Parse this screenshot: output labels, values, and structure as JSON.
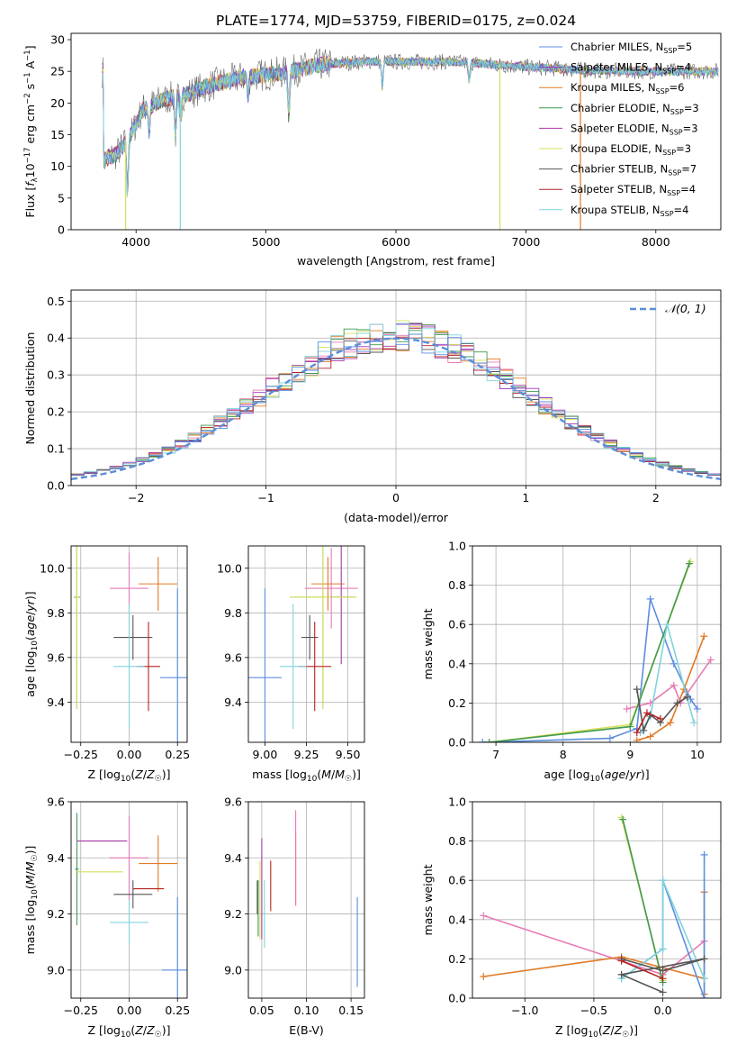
{
  "figure_title": "PLATE=1774, MJD=53759, FIBERID=0175, z=0.024",
  "colors": {
    "chabrier_miles": "#5b8ee0",
    "salpeter_miles": "#9a35c4",
    "kroupa_miles": "#e07a24",
    "chabrier_elodie": "#3f9a4f",
    "salpeter_elodie": "#a63aa6",
    "kroupa_elodie": "#d8e05a",
    "chabrier_stelib": "#555555",
    "salpeter_stelib": "#b52222",
    "kroupa_stelib": "#7fd3dd",
    "pink": "#e77ab3",
    "normal_curve": "#5b8ed8",
    "grid": "#b0b0b0"
  },
  "chart_data": [
    {
      "id": "spectrum",
      "type": "line",
      "title": "",
      "xlabel": "wavelength [Angstrom, rest frame]",
      "ylabel": "Flux [f_λ10^-17 erg cm^-2 s^-1 A^-1]",
      "xlim": [
        3500,
        8500
      ],
      "ylim": [
        0,
        31
      ],
      "xticks": [
        "4000",
        "5000",
        "6000",
        "7000",
        "8000"
      ],
      "yticks": [
        "0",
        "5",
        "10",
        "15",
        "20",
        "25",
        "30"
      ],
      "grid": false,
      "legend_position": "top-right",
      "legend": [
        {
          "label": "Chabrier MILES, N",
          "sub": "SSP",
          "tail": "=5",
          "color_key": "chabrier_miles"
        },
        {
          "label": "Salpeter MILES, N",
          "sub": "SSP",
          "tail": "=4",
          "color_key": "salpeter_miles"
        },
        {
          "label": "Kroupa MILES, N",
          "sub": "SSP",
          "tail": "=6",
          "color_key": "kroupa_miles"
        },
        {
          "label": "Chabrier ELODIE, N",
          "sub": "SSP",
          "tail": "=3",
          "color_key": "chabrier_elodie"
        },
        {
          "label": "Salpeter ELODIE, N",
          "sub": "SSP",
          "tail": "=3",
          "color_key": "salpeter_elodie"
        },
        {
          "label": "Kroupa ELODIE, N",
          "sub": "SSP",
          "tail": "=3",
          "color_key": "kroupa_elodie"
        },
        {
          "label": "Chabrier STELIB, N",
          "sub": "SSP",
          "tail": "=7",
          "color_key": "chabrier_stelib"
        },
        {
          "label": "Salpeter STELIB, N",
          "sub": "SSP",
          "tail": "=4",
          "color_key": "salpeter_stelib"
        },
        {
          "label": "Kroupa STELIB, N",
          "sub": "SSP",
          "tail": "=4",
          "color_key": "kroupa_stelib"
        }
      ],
      "continuum": {
        "x": [
          3750,
          3850,
          3950,
          4050,
          4200,
          4400,
          4600,
          4800,
          5000,
          5200,
          5400,
          5600,
          5800,
          6000,
          6200,
          6400,
          6600,
          6800,
          7000,
          7200,
          7400,
          7600,
          7800,
          8000,
          8200,
          8500
        ],
        "y": [
          11,
          12,
          14.5,
          19,
          20.5,
          21.5,
          23,
          24,
          24.5,
          25,
          26,
          26.3,
          26.6,
          26.5,
          26.5,
          26.5,
          26.3,
          26,
          25.7,
          25.5,
          25.2,
          25.1,
          25,
          25,
          25,
          25
        ]
      },
      "features": [
        {
          "x": 3934,
          "depth": 8
        },
        {
          "x": 4101,
          "depth": 4
        },
        {
          "x": 4304,
          "depth": 6
        },
        {
          "x": 4341,
          "depth": 4
        },
        {
          "x": 4861,
          "depth": 3
        },
        {
          "x": 5175,
          "depth": 7
        },
        {
          "x": 5895,
          "depth": 4
        },
        {
          "x": 6563,
          "depth": 3
        }
      ],
      "spikes": [
        {
          "x": 3920,
          "y_min": 0,
          "color_key": "kroupa_elodie"
        },
        {
          "x": 4340,
          "y_min": 0,
          "color_key": "kroupa_stelib"
        },
        {
          "x": 6800,
          "y_min": 0,
          "color_key": "kroupa_elodie"
        },
        {
          "x": 7420,
          "y_min": 0,
          "color_key": "kroupa_miles"
        }
      ]
    },
    {
      "id": "residuals",
      "type": "line",
      "title": "",
      "xlabel": "(data-model)/error",
      "ylabel": "Normed distribution",
      "xlim": [
        -2.5,
        2.5
      ],
      "ylim": [
        0,
        0.53
      ],
      "xticks": [
        "−2",
        "−1",
        "0",
        "1",
        "2"
      ],
      "yticks": [
        "0.0",
        "0.1",
        "0.2",
        "0.3",
        "0.4",
        "0.5"
      ],
      "grid": true,
      "legend_position": "top-right",
      "legend": [
        {
          "label": "𝒩(0, 1)",
          "color_key": "normal_curve"
        }
      ],
      "bin_width": 0.1,
      "bin_start": -2.5,
      "n_bins": 50
    },
    {
      "id": "age_vs_Z",
      "type": "scatter",
      "title": "",
      "xlabel": "Z [log10(Z/Z☉)]",
      "ylabel": "age [log10(age/yr)]",
      "xlim": [
        -0.3,
        0.3
      ],
      "ylim": [
        9.22,
        10.1
      ],
      "xticks": [
        "−0.25",
        "0.00",
        "0.25"
      ],
      "yticks": [
        "9.4",
        "9.6",
        "9.8",
        "10.0"
      ],
      "grid": true,
      "points": [
        {
          "x": 0.25,
          "y": 9.51,
          "xerr": 0.09,
          "yerr": 0.4,
          "color_key": "chabrier_miles"
        },
        {
          "x": 0.15,
          "y": 9.93,
          "xerr": 0.1,
          "yerr": 0.12,
          "color_key": "kroupa_miles"
        },
        {
          "x": 0.0,
          "y": 9.91,
          "xerr": 0.1,
          "yerr": 0.16,
          "color_key": "pink"
        },
        {
          "x": -0.27,
          "y": 9.87,
          "xerr": 0.01,
          "yerr": 0.5,
          "color_key": "salpeter_elodie"
        },
        {
          "x": -0.27,
          "y": 9.87,
          "xerr": 0.015,
          "yerr": 0.5,
          "color_key": "chabrier_elodie"
        },
        {
          "x": -0.27,
          "y": 9.87,
          "xerr": 0.01,
          "yerr": 0.5,
          "color_key": "kroupa_elodie"
        },
        {
          "x": 0.02,
          "y": 9.69,
          "xerr": 0.1,
          "yerr": 0.1,
          "color_key": "chabrier_stelib"
        },
        {
          "x": 0.1,
          "y": 9.56,
          "xerr": 0.06,
          "yerr": 0.2,
          "color_key": "salpeter_stelib"
        },
        {
          "x": 0.0,
          "y": 9.56,
          "xerr": 0.08,
          "yerr": 0.28,
          "color_key": "kroupa_stelib"
        }
      ]
    },
    {
      "id": "age_vs_mass",
      "type": "scatter",
      "title": "",
      "xlabel": "mass [log10(M/M☉)]",
      "ylabel": "",
      "xlim": [
        8.9,
        9.6
      ],
      "ylim": [
        9.22,
        10.1
      ],
      "xticks": [
        "9.00",
        "9.25",
        "9.50"
      ],
      "yticks": [
        "9.4",
        "9.6",
        "9.8",
        "10.0"
      ],
      "grid": true,
      "points": [
        {
          "x": 9.0,
          "y": 9.51,
          "xerr": 0.1,
          "yerr": 0.4,
          "color_key": "chabrier_miles"
        },
        {
          "x": 9.38,
          "y": 9.93,
          "xerr": 0.1,
          "yerr": 0.12,
          "color_key": "kroupa_miles"
        },
        {
          "x": 9.4,
          "y": 9.91,
          "xerr": 0.16,
          "yerr": 0.18,
          "color_key": "pink"
        },
        {
          "x": 9.46,
          "y": 9.87,
          "xerr": 0.07,
          "yerr": 0.3,
          "color_key": "salpeter_elodie"
        },
        {
          "x": 9.35,
          "y": 9.87,
          "xerr": 0.2,
          "yerr": 0.5,
          "color_key": "chabrier_elodie"
        },
        {
          "x": 9.35,
          "y": 9.87,
          "xerr": 0.2,
          "yerr": 0.5,
          "color_key": "kroupa_elodie"
        },
        {
          "x": 9.27,
          "y": 9.69,
          "xerr": 0.05,
          "yerr": 0.1,
          "color_key": "chabrier_stelib"
        },
        {
          "x": 9.3,
          "y": 9.56,
          "xerr": 0.1,
          "yerr": 0.2,
          "color_key": "salpeter_stelib"
        },
        {
          "x": 9.17,
          "y": 9.56,
          "xerr": 0.08,
          "yerr": 0.28,
          "color_key": "kroupa_stelib"
        }
      ]
    },
    {
      "id": "weight_vs_age",
      "type": "line",
      "title": "",
      "xlabel": "age [log10(age/yr)]",
      "ylabel": "mass weight",
      "xlim": [
        6.65,
        10.35
      ],
      "ylim": [
        0,
        1.0
      ],
      "xticks": [
        "7",
        "8",
        "9",
        "10"
      ],
      "yticks": [
        "0.0",
        "0.2",
        "0.4",
        "0.6",
        "0.8",
        "1.0"
      ],
      "grid": true,
      "series": [
        {
          "color_key": "chabrier_miles",
          "x": [
            6.8,
            8.7,
            9.1,
            9.3,
            9.65,
            9.9,
            10.0
          ],
          "y": [
            0.0,
            0.02,
            0.07,
            0.73,
            0.4,
            0.22,
            0.17
          ]
        },
        {
          "color_key": "kroupa_miles",
          "x": [
            9.1,
            9.3,
            9.6,
            9.8,
            10.1
          ],
          "y": [
            0.01,
            0.03,
            0.1,
            0.27,
            0.54
          ]
        },
        {
          "color_key": "pink",
          "x": [
            8.95,
            9.3,
            9.65,
            9.75,
            10.2
          ],
          "y": [
            0.17,
            0.2,
            0.29,
            0.2,
            0.42
          ]
        },
        {
          "color_key": "kroupa_elodie",
          "x": [
            6.9,
            9.0,
            9.9
          ],
          "y": [
            0.0,
            0.09,
            0.92
          ]
        },
        {
          "color_key": "chabrier_elodie",
          "x": [
            6.9,
            9.0,
            9.88
          ],
          "y": [
            0.0,
            0.08,
            0.91
          ]
        },
        {
          "color_key": "kroupa_stelib",
          "x": [
            9.15,
            9.3,
            9.55,
            9.95
          ],
          "y": [
            0.05,
            0.13,
            0.6,
            0.1
          ]
        },
        {
          "color_key": "chabrier_stelib",
          "x": [
            9.1,
            9.2,
            9.3,
            9.45,
            9.7,
            9.85
          ],
          "y": [
            0.27,
            0.06,
            0.14,
            0.1,
            0.2,
            0.23
          ]
        },
        {
          "color_key": "salpeter_stelib",
          "x": [
            9.1,
            9.25,
            9.45
          ],
          "y": [
            0.05,
            0.15,
            0.12
          ]
        }
      ]
    },
    {
      "id": "mass_vs_Z",
      "type": "scatter",
      "title": "",
      "xlabel": "Z [log10(Z/Z☉)]",
      "ylabel": "mass [log10(M/M☉)]",
      "xlim": [
        -0.3,
        0.3
      ],
      "ylim": [
        8.9,
        9.6
      ],
      "xticks": [
        "−0.25",
        "0.00",
        "0.25"
      ],
      "yticks": [
        "9.0",
        "9.2",
        "9.4",
        "9.6"
      ],
      "grid": true,
      "points": [
        {
          "x": 0.25,
          "y": 9.0,
          "xerr": 0.08,
          "yerr": 0.26,
          "color_key": "chabrier_miles"
        },
        {
          "x": 0.15,
          "y": 9.38,
          "xerr": 0.1,
          "yerr": 0.1,
          "color_key": "kroupa_miles"
        },
        {
          "x": 0.0,
          "y": 9.4,
          "xerr": 0.1,
          "yerr": 0.15,
          "color_key": "pink"
        },
        {
          "x": -0.27,
          "y": 9.46,
          "xerr": 0.0,
          "yerr": 0.0,
          "color_key": "salpeter_elodie"
        },
        {
          "x": -0.14,
          "y": 9.46,
          "xerr": 0.13,
          "yerr": 0.0,
          "color_key": "salpeter_elodie"
        },
        {
          "x": -0.27,
          "y": 9.36,
          "xerr": 0.01,
          "yerr": 0.2,
          "color_key": "chabrier_elodie"
        },
        {
          "x": -0.15,
          "y": 9.35,
          "xerr": 0.12,
          "yerr": 0.0,
          "color_key": "kroupa_elodie"
        },
        {
          "x": 0.02,
          "y": 9.27,
          "xerr": 0.1,
          "yerr": 0.05,
          "color_key": "chabrier_stelib"
        },
        {
          "x": 0.1,
          "y": 9.29,
          "xerr": 0.08,
          "yerr": 0.0,
          "color_key": "salpeter_stelib"
        },
        {
          "x": 0.0,
          "y": 9.17,
          "xerr": 0.1,
          "yerr": 0.08,
          "color_key": "kroupa_stelib"
        }
      ]
    },
    {
      "id": "mass_vs_EBV",
      "type": "scatter",
      "title": "",
      "xlabel": "E(B-V)",
      "ylabel": "",
      "xlim": [
        0.035,
        0.165
      ],
      "ylim": [
        8.9,
        9.6
      ],
      "xticks": [
        "0.05",
        "0.10",
        "0.15"
      ],
      "yticks": [
        "9.0",
        "9.2",
        "9.4",
        "9.6"
      ],
      "grid": true,
      "points": [
        {
          "x": 0.157,
          "y": 9.1,
          "xerr": 0,
          "yerr": 0.16,
          "color_key": "chabrier_miles"
        },
        {
          "x": 0.088,
          "y": 9.36,
          "xerr": 0,
          "yerr": 0.13,
          "color_key": "kroupa_miles"
        },
        {
          "x": 0.088,
          "y": 9.4,
          "xerr": 0,
          "yerr": 0.17,
          "color_key": "pink"
        },
        {
          "x": 0.05,
          "y": 9.29,
          "xerr": 0,
          "yerr": 0.18,
          "color_key": "salpeter_elodie"
        },
        {
          "x": 0.046,
          "y": 9.22,
          "xerr": 0,
          "yerr": 0.1,
          "color_key": "chabrier_elodie"
        },
        {
          "x": 0.048,
          "y": 9.25,
          "xerr": 0,
          "yerr": 0.14,
          "color_key": "kroupa_elodie"
        },
        {
          "x": 0.045,
          "y": 9.26,
          "xerr": 0,
          "yerr": 0.06,
          "color_key": "chabrier_stelib"
        },
        {
          "x": 0.06,
          "y": 9.3,
          "xerr": 0,
          "yerr": 0.09,
          "color_key": "salpeter_stelib"
        },
        {
          "x": 0.053,
          "y": 9.2,
          "xerr": 0,
          "yerr": 0.12,
          "color_key": "kroupa_stelib"
        }
      ]
    },
    {
      "id": "weight_vs_Z",
      "type": "line",
      "title": "",
      "xlabel": "Z [log10(Z/Z☉)]",
      "ylabel": "mass weight",
      "xlim": [
        -1.38,
        0.42
      ],
      "ylim": [
        0,
        1.0
      ],
      "xticks": [
        "−1.0",
        "−0.5",
        "0.0"
      ],
      "yticks": [
        "0.0",
        "0.2",
        "0.4",
        "0.6",
        "0.8",
        "1.0"
      ],
      "grid": true,
      "series": [
        {
          "color_key": "pink",
          "x": [
            -1.3,
            0.0,
            0.3
          ],
          "y": [
            0.42,
            0.12,
            0.29
          ]
        },
        {
          "color_key": "kroupa_miles",
          "x": [
            -1.3,
            -0.3,
            0.3,
            0.3,
            0.3
          ],
          "y": [
            0.11,
            0.21,
            0.1,
            0.54,
            0.02
          ]
        },
        {
          "color_key": "kroupa_elodie",
          "x": [
            -0.3,
            0.0
          ],
          "y": [
            0.92,
            0.09
          ]
        },
        {
          "color_key": "chabrier_elodie",
          "x": [
            -0.29,
            0.0
          ],
          "y": [
            0.91,
            0.08
          ]
        },
        {
          "color_key": "chabrier_miles",
          "x": [
            -0.3,
            0.0,
            0.0,
            0.3,
            0.3
          ],
          "y": [
            0.1,
            0.25,
            0.6,
            0.0,
            0.73
          ]
        },
        {
          "color_key": "kroupa_stelib",
          "x": [
            -0.3,
            0.0,
            0.0,
            0.3
          ],
          "y": [
            0.1,
            0.25,
            0.6,
            0.1
          ]
        },
        {
          "color_key": "chabrier_stelib",
          "x": [
            -0.3,
            0.0,
            0.3,
            -0.3,
            0.0
          ],
          "y": [
            0.2,
            0.14,
            0.2,
            0.12,
            0.03
          ]
        },
        {
          "color_key": "salpeter_stelib",
          "x": [
            -0.3,
            0.0
          ],
          "y": [
            0.19,
            0.1
          ]
        }
      ]
    }
  ]
}
